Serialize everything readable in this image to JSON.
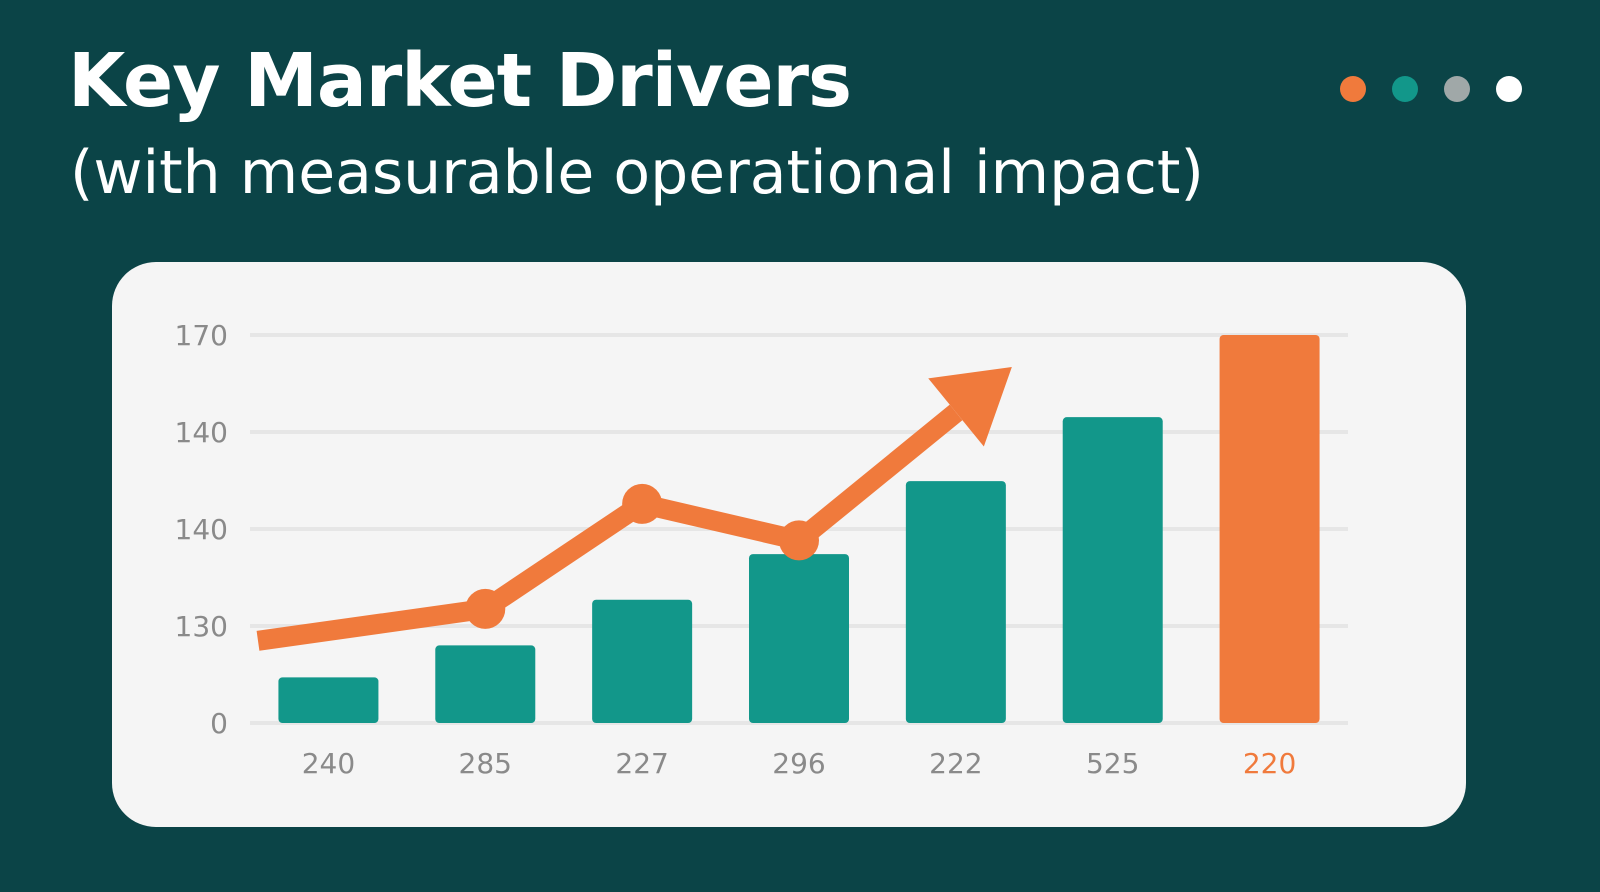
{
  "header": {
    "title": "Key Market Drivers",
    "subtitle": "(with measurable operational impact)"
  },
  "indicator_dots": [
    {
      "name": "orange-dot",
      "color": "#f07a3c"
    },
    {
      "name": "teal-dot",
      "color": "#12978a"
    },
    {
      "name": "gray-dot",
      "color": "#a0a8a8"
    },
    {
      "name": "white-dot",
      "color": "#ffffff"
    }
  ],
  "colors": {
    "background": "#0b4447",
    "card": "#f5f5f5",
    "bar": "#12978a",
    "accent": "#f07a3c",
    "gridline": "#e6e6e6",
    "tick_text": "#8a8a8a"
  },
  "chart_data": {
    "type": "bar",
    "title": "",
    "xlabel": "",
    "ylabel": "",
    "categories": [
      "240",
      "285",
      "227",
      "296",
      "222",
      "525",
      "220"
    ],
    "highlight_index": 6,
    "y_tick_labels": [
      "170",
      "140",
      "140",
      "130",
      "0"
    ],
    "values": [
      10,
      17,
      27,
      37,
      53,
      67,
      85
    ],
    "ylim": [
      0,
      85
    ],
    "trend_line": {
      "type": "line",
      "points": [
        18,
        25,
        48,
        40,
        78
      ],
      "marker_indices": [
        1,
        2,
        3
      ],
      "arrow_end": true
    },
    "grid": true,
    "legend": "none"
  }
}
